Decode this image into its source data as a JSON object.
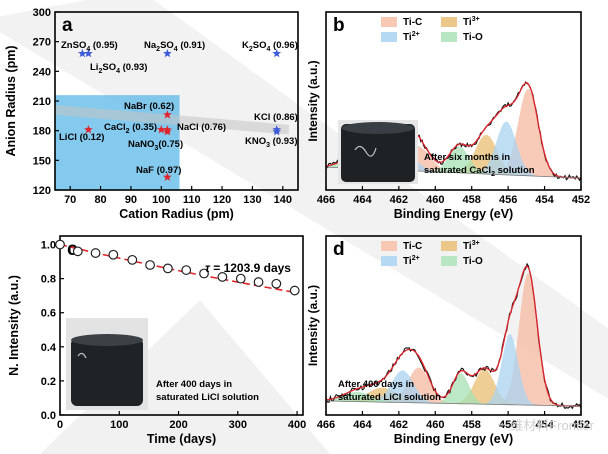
{
  "watermark": {
    "text": "一维材料Frontier"
  },
  "chart_data": [
    {
      "panel": "a",
      "type": "scatter",
      "xlabel": "Cation Radius (pm)",
      "ylabel": "Anion Radius (pm)",
      "xlim": [
        65,
        145
      ],
      "ylim": [
        120,
        300
      ],
      "xticks": [
        70,
        80,
        90,
        100,
        110,
        120,
        130,
        140
      ],
      "yticks": [
        120,
        150,
        180,
        210,
        240,
        270,
        300
      ],
      "shaded_region_color": "#5bb8e8",
      "points": [
        {
          "label": "ZnSO4 (0.95)",
          "x": 74,
          "y": 258,
          "marker": "star",
          "color": "#3d5bd9"
        },
        {
          "label": "Li2SO4 (0.93)",
          "x": 76,
          "y": 258,
          "marker": "star",
          "color": "#3d5bd9"
        },
        {
          "label": "Na2SO4 (0.91)",
          "x": 102,
          "y": 258,
          "marker": "star",
          "color": "#3d5bd9"
        },
        {
          "label": "K2SO4 (0.96)",
          "x": 138,
          "y": 258,
          "marker": "star",
          "color": "#3d5bd9"
        },
        {
          "label": "NaBr (0.62)",
          "x": 102,
          "y": 196,
          "marker": "star",
          "color": "#e0242b"
        },
        {
          "label": "KCl (0.86)",
          "x": 138,
          "y": 181,
          "marker": "star",
          "color": "#3d5bd9"
        },
        {
          "label": "KNO3 (0.93)",
          "x": 138,
          "y": 179,
          "marker": "star",
          "color": "#3d5bd9"
        },
        {
          "label": "LiCl (0.12)",
          "x": 76,
          "y": 181,
          "marker": "star",
          "color": "#e0242b"
        },
        {
          "label": "CaCl2 (0.35)",
          "x": 100,
          "y": 181,
          "marker": "star",
          "color": "#e0242b"
        },
        {
          "label": "NaCl (0.76)",
          "x": 102,
          "y": 181,
          "marker": "star",
          "color": "#e0242b"
        },
        {
          "label": "NaNO3 (0.75)",
          "x": 102,
          "y": 179,
          "marker": "star",
          "color": "#e0242b"
        },
        {
          "label": "NaF (0.97)",
          "x": 102,
          "y": 133,
          "marker": "star",
          "color": "#e0242b"
        }
      ],
      "annotations": [
        {
          "name": "znso4",
          "text": "ZnSO",
          "sub": "4",
          "after": " (0.95)"
        },
        {
          "name": "li2so4",
          "text": "Li",
          "sub": "2",
          "mid": "SO",
          "sub2": "4",
          "after": " (0.93)"
        },
        {
          "name": "na2so4",
          "text": "Na",
          "sub": "2",
          "mid": "SO",
          "sub2": "4",
          "after": " (0.91)"
        },
        {
          "name": "k2so4",
          "text": "K",
          "sub": "2",
          "mid": "SO",
          "sub2": "4",
          "after": " (0.96)"
        },
        {
          "name": "nabr",
          "text": "NaBr (0.62)"
        },
        {
          "name": "kcl",
          "text": "KCl (0.86)"
        },
        {
          "name": "licl",
          "text": "LiCl (0.12)"
        },
        {
          "name": "cacl2",
          "text": "CaCl",
          "sub": "2",
          "after": " (0.35)"
        },
        {
          "name": "nacl",
          "text": "NaCl (0.76)"
        },
        {
          "name": "nano3",
          "text": "NaNO",
          "sub": "3",
          "after": "(0.75)"
        },
        {
          "name": "kno3",
          "text": "KNO",
          "sub": "3",
          "after": " (0.93)"
        },
        {
          "name": "naf",
          "text": "NaF (0.97)"
        }
      ]
    },
    {
      "panel": "b",
      "type": "line",
      "xlabel": "Binding Energy (eV)",
      "ylabel": "Intensity (a.u.)",
      "xlim": [
        466,
        452
      ],
      "xticks": [
        466,
        464,
        462,
        460,
        458,
        456,
        454,
        452
      ],
      "legend": [
        {
          "label": "Ti-C",
          "color": "#f7c9b4"
        },
        {
          "label": "Ti3+",
          "color": "#ecc78a"
        },
        {
          "label": "Ti2+",
          "color": "#b5d9f2"
        },
        {
          "label": "Ti-O",
          "color": "#b9e6c2"
        }
      ],
      "peaks": [
        {
          "component": "Ti-C",
          "center": 454.9,
          "height": 0.62,
          "width": 0.55,
          "color": "#f4b9a0"
        },
        {
          "component": "Ti-C",
          "center": 461.0,
          "height": 0.18,
          "width": 0.7,
          "color": "#f4b9a0"
        },
        {
          "component": "Ti3+",
          "center": 457.2,
          "height": 0.28,
          "width": 0.6,
          "color": "#e8bd72"
        },
        {
          "component": "Ti3+",
          "center": 462.9,
          "height": 0.12,
          "width": 0.8,
          "color": "#e8bd72"
        },
        {
          "component": "Ti2+",
          "center": 456.1,
          "height": 0.38,
          "width": 0.55,
          "color": "#a9d3f0"
        },
        {
          "component": "Ti2+",
          "center": 461.9,
          "height": 0.17,
          "width": 0.7,
          "color": "#a9d3f0"
        },
        {
          "component": "Ti-O",
          "center": 458.7,
          "height": 0.19,
          "width": 0.55,
          "color": "#a7e0b5"
        },
        {
          "component": "Ti-O",
          "center": 464.3,
          "height": 0.08,
          "width": 0.8,
          "color": "#a7e0b5"
        }
      ],
      "background": 0.12,
      "inset_text": [
        "After six months in",
        "saturated CaCl",
        "2",
        " solution"
      ]
    },
    {
      "panel": "c",
      "type": "scatter",
      "xlabel": "Time (days)",
      "ylabel": "N. Intensity (a.u.)",
      "xlim": [
        0,
        410
      ],
      "ylim": [
        0.0,
        1.05
      ],
      "xticks": [
        0,
        100,
        200,
        300,
        400
      ],
      "yticks": [
        0.0,
        0.2,
        0.4,
        0.6,
        0.8,
        1.0
      ],
      "x": [
        0,
        30,
        60,
        90,
        122,
        152,
        182,
        213,
        243,
        274,
        305,
        335,
        365,
        396
      ],
      "y": [
        1.0,
        0.96,
        0.95,
        0.94,
        0.91,
        0.88,
        0.86,
        0.85,
        0.83,
        0.81,
        0.8,
        0.78,
        0.77,
        0.73
      ],
      "fit": {
        "tau": 1203.9,
        "label": "τ = 1203.9 days",
        "color": "#e0242b"
      },
      "inset_text": [
        "After 400 days in",
        "saturated LiCl solution"
      ]
    },
    {
      "panel": "d",
      "type": "line",
      "xlabel": "Binding Energy (eV)",
      "ylabel": "Intensity (a.u.)",
      "xlim": [
        466,
        452
      ],
      "xticks": [
        466,
        464,
        462,
        460,
        458,
        456,
        454,
        452
      ],
      "legend": [
        {
          "label": "Ti-C",
          "color": "#f7c9b4"
        },
        {
          "label": "Ti3+",
          "color": "#ecc78a"
        },
        {
          "label": "Ti2+",
          "color": "#b5d9f2"
        },
        {
          "label": "Ti-O",
          "color": "#b9e6c2"
        }
      ],
      "peaks": [
        {
          "component": "Ti-C",
          "center": 454.9,
          "height": 0.82,
          "width": 0.5,
          "color": "#f4b9a0"
        },
        {
          "component": "Ti-C",
          "center": 460.9,
          "height": 0.22,
          "width": 0.6,
          "color": "#f4b9a0"
        },
        {
          "component": "Ti3+",
          "center": 457.3,
          "height": 0.22,
          "width": 0.55,
          "color": "#e8bd72"
        },
        {
          "component": "Ti3+",
          "center": 462.9,
          "height": 0.09,
          "width": 0.8,
          "color": "#e8bd72"
        },
        {
          "component": "Ti2+",
          "center": 455.9,
          "height": 0.44,
          "width": 0.45,
          "color": "#a9d3f0"
        },
        {
          "component": "Ti2+",
          "center": 461.8,
          "height": 0.2,
          "width": 0.6,
          "color": "#a9d3f0"
        },
        {
          "component": "Ti-O",
          "center": 458.6,
          "height": 0.19,
          "width": 0.45,
          "color": "#a7e0b5"
        },
        {
          "component": "Ti-O",
          "center": 464.3,
          "height": 0.06,
          "width": 0.8,
          "color": "#a7e0b5"
        }
      ],
      "background": 0.05,
      "inset_text": [
        "After 400 days in",
        "saturated LiCl solution"
      ]
    }
  ]
}
